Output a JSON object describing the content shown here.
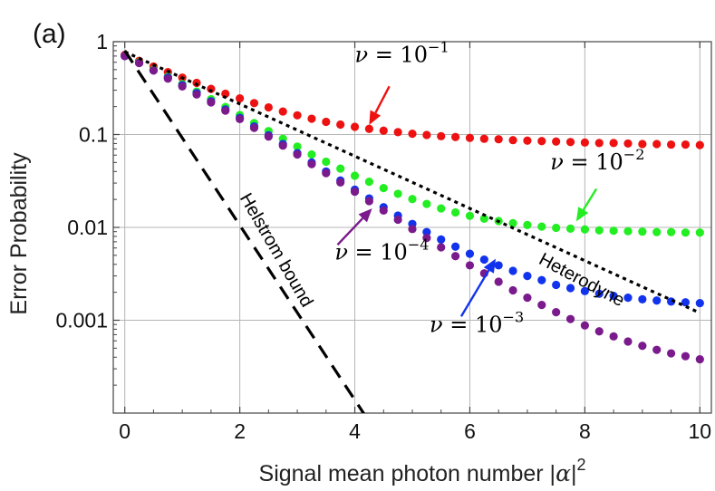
{
  "chart_data": {
    "type": "scatter",
    "panel_label": "(a)",
    "xlabel": "Signal mean photon number |α|²",
    "xlabel_main": "Signal mean photon number |",
    "xlabel_alpha": "α",
    "xlabel_tail": "|",
    "xlabel_sup": "2",
    "ylabel": "Error Probability",
    "x_scale": "linear",
    "y_scale": "log",
    "xlim": [
      -0.2,
      10.2
    ],
    "ylim": [
      0.0001,
      1
    ],
    "x_ticks": [
      0,
      2,
      4,
      6,
      8,
      10
    ],
    "x_tick_labels": [
      "0",
      "2",
      "4",
      "6",
      "8",
      "10"
    ],
    "y_ticks": [
      0.001,
      0.01,
      0.1,
      1
    ],
    "y_tick_labels": [
      "0.001",
      "0.01",
      "0.1",
      "1"
    ],
    "grid": true,
    "series": [
      {
        "name": "ν = 10⁻¹",
        "color": "#ee1111",
        "style": "dots",
        "x": [
          0.0,
          0.25,
          0.5,
          0.75,
          1.0,
          1.25,
          1.5,
          1.75,
          2.0,
          2.25,
          2.5,
          2.75,
          3.0,
          3.25,
          3.5,
          3.75,
          4.0,
          4.25,
          4.5,
          4.75,
          5.0,
          5.25,
          5.5,
          5.75,
          6.0,
          6.25,
          6.5,
          6.75,
          7.0,
          7.25,
          7.5,
          7.75,
          8.0,
          8.25,
          8.5,
          8.75,
          9.0,
          9.25,
          9.5,
          9.75,
          10.0
        ],
        "y": [
          0.72,
          0.62,
          0.54,
          0.47,
          0.41,
          0.36,
          0.31,
          0.275,
          0.245,
          0.218,
          0.196,
          0.177,
          0.161,
          0.148,
          0.137,
          0.128,
          0.121,
          0.115,
          0.11,
          0.106,
          0.102,
          0.099,
          0.096,
          0.094,
          0.092,
          0.09,
          0.089,
          0.087,
          0.086,
          0.085,
          0.084,
          0.083,
          0.082,
          0.081,
          0.081,
          0.08,
          0.079,
          0.079,
          0.078,
          0.078,
          0.077
        ]
      },
      {
        "name": "ν = 10⁻²",
        "color": "#22ee22",
        "style": "dots",
        "x": [
          0.0,
          0.25,
          0.5,
          0.75,
          1.0,
          1.25,
          1.5,
          1.75,
          2.0,
          2.25,
          2.5,
          2.75,
          3.0,
          3.25,
          3.5,
          3.75,
          4.0,
          4.25,
          4.5,
          4.75,
          5.0,
          5.25,
          5.5,
          5.75,
          6.0,
          6.25,
          6.5,
          6.75,
          7.0,
          7.25,
          7.5,
          7.75,
          8.0,
          8.25,
          8.5,
          8.75,
          9.0,
          9.25,
          9.5,
          9.75,
          10.0
        ],
        "y": [
          0.7,
          0.6,
          0.5,
          0.42,
          0.35,
          0.29,
          0.24,
          0.198,
          0.162,
          0.133,
          0.109,
          0.09,
          0.074,
          0.061,
          0.051,
          0.043,
          0.036,
          0.031,
          0.0265,
          0.023,
          0.0202,
          0.0179,
          0.016,
          0.0145,
          0.0133,
          0.0124,
          0.0117,
          0.0111,
          0.0106,
          0.0102,
          0.0099,
          0.0097,
          0.0095,
          0.0093,
          0.0092,
          0.0091,
          0.009,
          0.0089,
          0.0089,
          0.0088,
          0.0088
        ]
      },
      {
        "name": "ν = 10⁻³",
        "color": "#1133ee",
        "style": "dots",
        "x": [
          0.0,
          0.25,
          0.5,
          0.75,
          1.0,
          1.25,
          1.5,
          1.75,
          2.0,
          2.25,
          2.5,
          2.75,
          3.0,
          3.25,
          3.5,
          3.75,
          4.0,
          4.25,
          4.5,
          4.75,
          5.0,
          5.25,
          5.5,
          5.75,
          6.0,
          6.25,
          6.5,
          6.75,
          7.0,
          7.25,
          7.5,
          7.75,
          8.0,
          8.25,
          8.5,
          8.75,
          9.0,
          9.25,
          9.5,
          9.75,
          10.0
        ],
        "y": [
          0.7,
          0.59,
          0.49,
          0.41,
          0.34,
          0.28,
          0.228,
          0.186,
          0.151,
          0.122,
          0.098,
          0.079,
          0.063,
          0.05,
          0.04,
          0.032,
          0.0255,
          0.0205,
          0.0165,
          0.0134,
          0.0109,
          0.0089,
          0.0074,
          0.0062,
          0.0052,
          0.0045,
          0.0039,
          0.0034,
          0.003,
          0.0027,
          0.0024,
          0.00222,
          0.00206,
          0.00193,
          0.00183,
          0.00175,
          0.00168,
          0.00163,
          0.00159,
          0.00156,
          0.00153
        ]
      },
      {
        "name": "ν = 10⁻⁴",
        "color": "#7a1a8c",
        "style": "dots",
        "x": [
          0.0,
          0.25,
          0.5,
          0.75,
          1.0,
          1.25,
          1.5,
          1.75,
          2.0,
          2.25,
          2.5,
          2.75,
          3.0,
          3.25,
          3.5,
          3.75,
          4.0,
          4.25,
          4.5,
          4.75,
          5.0,
          5.25,
          5.5,
          5.75,
          6.0,
          6.25,
          6.5,
          6.75,
          7.0,
          7.25,
          7.5,
          7.75,
          8.0,
          8.25,
          8.5,
          8.75,
          9.0,
          9.25,
          9.5,
          9.75,
          10.0
        ],
        "y": [
          0.7,
          0.59,
          0.49,
          0.4,
          0.33,
          0.27,
          0.222,
          0.181,
          0.147,
          0.118,
          0.095,
          0.076,
          0.061,
          0.048,
          0.0384,
          0.0305,
          0.0242,
          0.0192,
          0.0152,
          0.0121,
          0.0096,
          0.0077,
          0.0061,
          0.0049,
          0.0039,
          0.0032,
          0.0026,
          0.0021,
          0.00175,
          0.00146,
          0.00122,
          0.00103,
          0.00088,
          0.00076,
          0.00067,
          0.00059,
          0.00053,
          0.00048,
          0.00044,
          0.00041,
          0.00038
        ]
      },
      {
        "name": "Heterodyne",
        "color": "#000000",
        "style": "dotted",
        "x": [
          0,
          10
        ],
        "y": [
          0.78,
          0.0012
        ]
      },
      {
        "name": "Helstrom bound",
        "color": "#000000",
        "style": "dashed",
        "x": [
          0,
          4.2
        ],
        "y": [
          0.8,
          9e-05
        ]
      }
    ],
    "annotations": [
      {
        "kind": "math",
        "nu": "ν",
        "eq": " = 10",
        "exp": "−1",
        "color": "#ee1111",
        "text_at": [
          4.0,
          0.6
        ],
        "arrow_from": [
          4.6,
          0.33
        ],
        "arrow_to": [
          4.25,
          0.127
        ]
      },
      {
        "kind": "math",
        "nu": "ν",
        "eq": " = 10",
        "exp": "−2",
        "color": "#22ee22",
        "text_at": [
          7.4,
          0.042
        ],
        "arrow_from": [
          8.2,
          0.026
        ],
        "arrow_to": [
          7.85,
          0.0116
        ]
      },
      {
        "kind": "math",
        "nu": "ν",
        "eq": " = 10",
        "exp": "−3",
        "color": "#1133ee",
        "text_at": [
          5.3,
          0.00075
        ],
        "arrow_from": [
          5.85,
          0.0011
        ],
        "arrow_to": [
          6.45,
          0.0046
        ]
      },
      {
        "kind": "math",
        "nu": "ν",
        "eq": " = 10",
        "exp": "−4",
        "color": "#7a1a8c",
        "text_at": [
          3.65,
          0.0045
        ],
        "arrow_from": [
          3.7,
          0.0065
        ],
        "arrow_to": [
          4.3,
          0.016
        ]
      },
      {
        "kind": "plain",
        "text": "Heterodyne",
        "color": "#000000",
        "text_at": [
          7.9,
          0.0024
        ],
        "rotate": 28
      },
      {
        "kind": "plain",
        "text": "Helstrom bound",
        "color": "#000000",
        "text_at": [
          2.55,
          0.0053
        ],
        "rotate": 60
      }
    ]
  }
}
